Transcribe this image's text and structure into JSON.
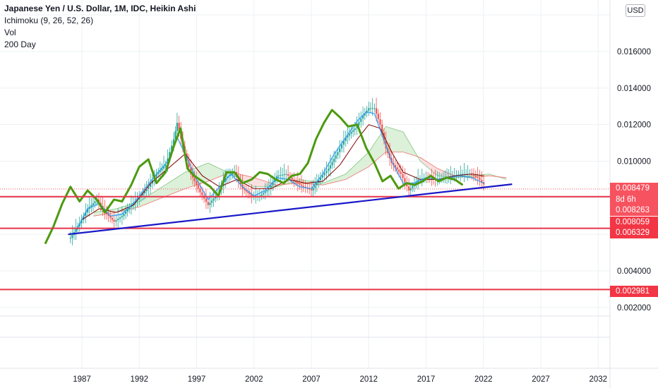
{
  "legend": {
    "title": "Japanese Yen / U.S. Dollar, 1M, IDC, Heikin Ashi",
    "line2": "Ichimoku (9, 26, 52, 26)",
    "line3": "Vol",
    "line4": "200 Day"
  },
  "currency_label": "USD",
  "price_tags": [
    {
      "label": "0.008479",
      "color": "#f7525f"
    },
    {
      "label": "8d 6h",
      "color": "#f7525f"
    },
    {
      "label": "0.008263",
      "color": "#f7525f"
    },
    {
      "label": "0.008059",
      "color": "#f23645"
    },
    {
      "label": "0.006329",
      "color": "#f23645"
    },
    {
      "label": "0.002981",
      "color": "#f23645"
    }
  ],
  "colors": {
    "up": "#26a69a",
    "down": "#ef5350",
    "ma200": "#4c9a0f",
    "trendline": "#1818c8",
    "hline": "#e8344a",
    "tenkan": "#2196f3",
    "kijun": "#800000",
    "cloud_bull": "#d4ecd0",
    "cloud_bear": "#f9d8d8",
    "grid": "#eef0f3"
  },
  "chart_data": {
    "type": "line",
    "title": "Japanese Yen / U.S. Dollar, 1M, IDC, Heikin Ashi",
    "xlabel": "",
    "ylabel": "",
    "x_ticks": [
      "1987",
      "1992",
      "1997",
      "2002",
      "2007",
      "2012",
      "2017",
      "2022",
      "2027",
      "2032"
    ],
    "y_ticks": [
      "0.016000",
      "0.014000",
      "0.012000",
      "0.010000",
      "0.004000",
      "0.002000"
    ],
    "ylim": [
      0.0015,
      0.0182
    ],
    "xlim": [
      1981.5,
      2035
    ],
    "horizontal_lines": [
      0.008059,
      0.006329,
      0.002981
    ],
    "trendline": {
      "x": [
        1985.8,
        2024.5
      ],
      "y": [
        0.006,
        0.00874
      ]
    },
    "series": [
      {
        "name": "200 Day",
        "x": [
          1983.8,
          1984.5,
          1985.3,
          1986.0,
          1986.8,
          1987.5,
          1988.3,
          1989.0,
          1989.8,
          1990.5,
          1991.3,
          1992.0,
          1992.8,
          1993.5,
          1994.3,
          1995.0,
          1995.6,
          1996.2,
          1996.8,
          1997.5,
          1998.2,
          1998.9,
          1999.6,
          2000.3,
          2001.0,
          2001.8,
          2002.5,
          2003.2,
          2003.9,
          2004.6,
          2005.3,
          2006.0,
          2006.7,
          2007.4,
          2008.1,
          2008.8,
          2009.5,
          2010.2,
          2011.0,
          2011.8,
          2012.5,
          2013.2,
          2013.9,
          2014.6,
          2015.3,
          2016.0,
          2016.7,
          2017.4,
          2018.1,
          2018.8,
          2019.5,
          2020.2
        ],
        "y": [
          0.00548,
          0.0064,
          0.0077,
          0.0086,
          0.0078,
          0.0084,
          0.0079,
          0.0072,
          0.0079,
          0.0078,
          0.0087,
          0.0097,
          0.0101,
          0.0088,
          0.0094,
          0.0108,
          0.0118,
          0.0096,
          0.0092,
          0.0089,
          0.0086,
          0.0081,
          0.0094,
          0.0094,
          0.0088,
          0.009,
          0.0094,
          0.0093,
          0.009,
          0.0088,
          0.0092,
          0.0093,
          0.0099,
          0.0112,
          0.0121,
          0.0128,
          0.0124,
          0.0119,
          0.012,
          0.0107,
          0.0099,
          0.0089,
          0.0092,
          0.0085,
          0.0088,
          0.0087,
          0.0089,
          0.0092,
          0.0089,
          0.0091,
          0.009,
          0.0087
        ]
      },
      {
        "name": "Price",
        "x": [
          1986.0,
          1986.8,
          1987.5,
          1988.3,
          1989.0,
          1989.8,
          1990.5,
          1991.3,
          1992.0,
          1992.8,
          1993.5,
          1994.3,
          1995.0,
          1995.3,
          1995.8,
          1996.5,
          1997.3,
          1998.0,
          1998.8,
          1999.5,
          2000.3,
          2001.0,
          2001.8,
          2002.5,
          2003.3,
          2004.0,
          2004.8,
          2005.5,
          2006.3,
          2007.0,
          2007.8,
          2008.5,
          2009.3,
          2010.0,
          2010.8,
          2011.5,
          2012.0,
          2012.5,
          2013.0,
          2013.5,
          2014.0,
          2014.8,
          2015.5,
          2016.3,
          2017.0,
          2017.8,
          2018.5,
          2019.3,
          2020.0,
          2020.8,
          2021.5,
          2022.2
        ],
        "y": [
          0.0058,
          0.0066,
          0.0074,
          0.0079,
          0.0072,
          0.0067,
          0.007,
          0.0076,
          0.008,
          0.0086,
          0.0093,
          0.0098,
          0.0112,
          0.0121,
          0.0108,
          0.0093,
          0.0083,
          0.0076,
          0.0082,
          0.0091,
          0.0094,
          0.0085,
          0.0081,
          0.0081,
          0.0085,
          0.0092,
          0.0093,
          0.0089,
          0.0086,
          0.0084,
          0.0091,
          0.0096,
          0.0105,
          0.0113,
          0.0118,
          0.0125,
          0.0129,
          0.0129,
          0.012,
          0.0107,
          0.0099,
          0.0093,
          0.0084,
          0.009,
          0.0091,
          0.009,
          0.0091,
          0.0092,
          0.0093,
          0.0093,
          0.0091,
          0.0086
        ]
      },
      {
        "name": "Tenkan",
        "x": [
          1986.5,
          1987.5,
          1988.5,
          1989.5,
          1990.5,
          1991.5,
          1992.5,
          1993.5,
          1994.5,
          1995.3,
          1996.0,
          1997.0,
          1998.0,
          1999.0,
          2000.0,
          2001.0,
          2002.0,
          2003.0,
          2004.0,
          2005.0,
          2006.0,
          2007.0,
          2008.0,
          2009.0,
          2010.0,
          2011.0,
          2011.8,
          2012.5,
          2013.3,
          2014.0,
          2015.0,
          2016.0,
          2017.0,
          2018.0,
          2019.0,
          2020.0,
          2021.0,
          2022.0
        ],
        "y": [
          0.0062,
          0.0074,
          0.0077,
          0.007,
          0.0071,
          0.0077,
          0.0085,
          0.0093,
          0.01,
          0.0113,
          0.0104,
          0.009,
          0.0079,
          0.0086,
          0.0093,
          0.0086,
          0.0081,
          0.0084,
          0.0091,
          0.009,
          0.0086,
          0.0085,
          0.0093,
          0.0104,
          0.0113,
          0.0122,
          0.0127,
          0.0126,
          0.0112,
          0.01,
          0.0088,
          0.0088,
          0.0091,
          0.009,
          0.0091,
          0.0092,
          0.0091,
          0.0088
        ]
      },
      {
        "name": "Kijun",
        "x": [
          1987.0,
          1988.5,
          1990.0,
          1991.5,
          1993.0,
          1994.5,
          1996.0,
          1997.5,
          1999.0,
          2000.5,
          2002.0,
          2003.5,
          2005.0,
          2006.5,
          2008.0,
          2009.5,
          2011.0,
          2012.0,
          2013.0,
          2014.0,
          2015.0,
          2016.5,
          2018.0,
          2019.5,
          2021.0,
          2022.0
        ],
        "y": [
          0.0068,
          0.0074,
          0.0072,
          0.0076,
          0.0088,
          0.0096,
          0.0104,
          0.0092,
          0.0086,
          0.009,
          0.0085,
          0.0085,
          0.009,
          0.0088,
          0.0089,
          0.0098,
          0.0112,
          0.012,
          0.0118,
          0.0105,
          0.0094,
          0.009,
          0.009,
          0.0092,
          0.0093,
          0.0092
        ]
      },
      {
        "name": "Cloud Span A",
        "x": [
          1988.0,
          1990.0,
          1992.0,
          1994.0,
          1996.0,
          1998.0,
          2000.0,
          2002.0,
          2004.0,
          2006.0,
          2008.0,
          2010.0,
          2012.0,
          2013.5,
          2015.0,
          2016.5,
          2018.0,
          2019.5,
          2021.0,
          2022.5,
          2024.0
        ],
        "y": [
          0.0072,
          0.0074,
          0.0078,
          0.0086,
          0.0094,
          0.0099,
          0.0093,
          0.0086,
          0.0086,
          0.009,
          0.0088,
          0.0093,
          0.0105,
          0.0119,
          0.0116,
          0.01,
          0.0092,
          0.0091,
          0.0092,
          0.0093,
          0.009
        ]
      },
      {
        "name": "Cloud Span B",
        "x": [
          1988.0,
          1990.0,
          1992.0,
          1994.0,
          1996.0,
          1998.0,
          2000.0,
          2002.0,
          2004.0,
          2006.0,
          2008.0,
          2010.0,
          2012.0,
          2013.5,
          2015.0,
          2016.5,
          2018.0,
          2019.5,
          2021.0,
          2022.5,
          2024.0
        ],
        "y": [
          0.007,
          0.0072,
          0.0075,
          0.008,
          0.0085,
          0.0089,
          0.0094,
          0.0091,
          0.0087,
          0.0088,
          0.0087,
          0.009,
          0.0097,
          0.0105,
          0.0105,
          0.0102,
          0.0096,
          0.0092,
          0.0091,
          0.0092,
          0.0091
        ]
      }
    ]
  }
}
